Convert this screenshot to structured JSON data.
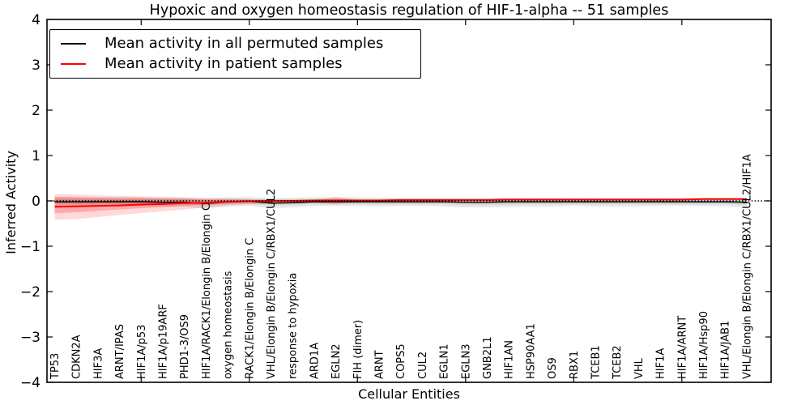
{
  "figure": {
    "title": "Hypoxic and oxygen homeostasis regulation of HIF-1-alpha -- 51 samples",
    "xlabel": "Cellular Entities",
    "ylabel": "Inferred Activity"
  },
  "legend": {
    "position": "upper left",
    "entries": [
      {
        "label": "Mean activity in all permuted samples",
        "color": "#000000"
      },
      {
        "label": "Mean activity in patient samples",
        "color": "#ff0000"
      }
    ]
  },
  "chart_data": {
    "type": "line",
    "title": "Hypoxic and oxygen homeostasis regulation of HIF-1-alpha -- 51 samples",
    "xlabel": "Cellular Entities",
    "ylabel": "Inferred Activity",
    "ylim": [
      -4,
      4
    ],
    "yticks": [
      4,
      3,
      2,
      1,
      0,
      -1,
      -2,
      -3,
      -4
    ],
    "xtick_indices": [
      4,
      9,
      14,
      19,
      24,
      29
    ],
    "grid": false,
    "legend_position": "upper left",
    "zero_line": {
      "y": 0,
      "style": "dotted",
      "color": "#000000"
    },
    "categories": [
      "TP53",
      "CDKN2A",
      "HIF3A",
      "ARNT/IPAS",
      "HIF1A/p53",
      "HIF1A/p19ARF",
      "PHD1-3/OS9",
      "HIF1A/RACK1/Elongin B/Elongin C",
      "oxygen homeostasis",
      "RACK1/Elongin B/Elongin C",
      "VHL/Elongin B/Elongin C/RBX1/CUL2",
      "response to hypoxia",
      "ARD1A",
      "EGLN2",
      "FIH (dimer)",
      "ARNT",
      "COPS5",
      "CUL2",
      "EGLN1",
      "EGLN3",
      "GNB2L1",
      "HIF1AN",
      "HSP90AA1",
      "OS9",
      "RBX1",
      "TCEB1",
      "TCEB2",
      "VHL",
      "HIF1A",
      "HIF1A/ARNT",
      "HIF1A/Hsp90",
      "HIF1A/JAB1",
      "VHL/Elongin B/Elongin C/RBX1/CUL2/HIF1A"
    ],
    "series": [
      {
        "name": "Mean activity in all permuted samples",
        "color": "#000000",
        "line_width": 1.4,
        "values": [
          -0.02,
          -0.02,
          -0.02,
          -0.02,
          -0.02,
          -0.03,
          -0.03,
          -0.06,
          -0.02,
          -0.01,
          -0.05,
          -0.04,
          -0.02,
          -0.02,
          -0.02,
          -0.02,
          -0.02,
          -0.02,
          -0.02,
          -0.03,
          -0.03,
          -0.02,
          -0.02,
          -0.02,
          -0.02,
          -0.02,
          -0.02,
          -0.02,
          -0.02,
          -0.02,
          -0.02,
          -0.02,
          -0.03
        ],
        "band_outer": {
          "color": "#78787830",
          "upper": [
            0.08,
            0.08,
            0.08,
            0.08,
            0.08,
            0.07,
            0.07,
            0.06,
            0.08,
            0.08,
            0.06,
            0.07,
            0.08,
            0.08,
            0.08,
            0.07,
            0.07,
            0.07,
            0.07,
            0.07,
            0.07,
            0.07,
            0.07,
            0.07,
            0.07,
            0.07,
            0.07,
            0.07,
            0.07,
            0.07,
            0.07,
            0.07,
            0.07
          ],
          "lower": [
            -0.12,
            -0.12,
            -0.12,
            -0.12,
            -0.12,
            -0.13,
            -0.13,
            -0.17,
            -0.12,
            -0.11,
            -0.16,
            -0.14,
            -0.11,
            -0.11,
            -0.11,
            -0.12,
            -0.11,
            -0.11,
            -0.12,
            -0.14,
            -0.14,
            -0.13,
            -0.12,
            -0.12,
            -0.11,
            -0.12,
            -0.12,
            -0.12,
            -0.11,
            -0.11,
            -0.11,
            -0.12,
            -0.14
          ]
        },
        "band_inner": {
          "color": "#78787836",
          "upper": [
            0.04,
            0.04,
            0.04,
            0.04,
            0.04,
            0.04,
            0.04,
            0.03,
            0.04,
            0.04,
            0.03,
            0.04,
            0.04,
            0.04,
            0.04,
            0.04,
            0.04,
            0.04,
            0.04,
            0.04,
            0.04,
            0.04,
            0.04,
            0.04,
            0.04,
            0.04,
            0.04,
            0.04,
            0.04,
            0.04,
            0.04,
            0.04,
            0.04
          ],
          "lower": [
            -0.07,
            -0.07,
            -0.07,
            -0.07,
            -0.07,
            -0.08,
            -0.08,
            -0.1,
            -0.07,
            -0.07,
            -0.09,
            -0.08,
            -0.07,
            -0.07,
            -0.07,
            -0.07,
            -0.07,
            -0.07,
            -0.07,
            -0.08,
            -0.08,
            -0.08,
            -0.07,
            -0.07,
            -0.07,
            -0.07,
            -0.07,
            -0.07,
            -0.07,
            -0.07,
            -0.07,
            -0.07,
            -0.08
          ]
        }
      },
      {
        "name": "Mean activity in patient samples",
        "color": "#ff0000",
        "line_width": 2,
        "values": [
          -0.13,
          -0.12,
          -0.11,
          -0.1,
          -0.08,
          -0.07,
          -0.05,
          -0.04,
          -0.02,
          -0.01,
          0,
          0,
          0.01,
          0.01,
          0.01,
          0.01,
          0.02,
          0.02,
          0.02,
          0.02,
          0.02,
          0.03,
          0.03,
          0.03,
          0.03,
          0.03,
          0.03,
          0.03,
          0.03,
          0.03,
          0.04,
          0.04,
          0.04
        ],
        "band_outer": {
          "color": "#ff000026",
          "upper": [
            0.15,
            0.14,
            0.12,
            0.11,
            0.1,
            0.09,
            0.08,
            0.06,
            0.05,
            0.04,
            0.03,
            0.02,
            0.03,
            0.09,
            0.03,
            0.03,
            0.03,
            0.03,
            0.03,
            0.03,
            0.03,
            0.04,
            0.04,
            0.04,
            0.04,
            0.04,
            0.04,
            0.04,
            0.04,
            0.04,
            0.05,
            0.05,
            0.05
          ],
          "lower": [
            -0.42,
            -0.4,
            -0.36,
            -0.31,
            -0.27,
            -0.23,
            -0.19,
            -0.14,
            -0.1,
            -0.07,
            -0.05,
            -0.03,
            -0.04,
            -0.08,
            -0.02,
            -0.01,
            0,
            0,
            0,
            0,
            0,
            0.01,
            0.01,
            0.01,
            0.02,
            0.02,
            0.02,
            0.02,
            0.02,
            0.02,
            0.03,
            0.03,
            0.03
          ]
        },
        "band_inner": {
          "color": "#ff000038",
          "upper": [
            0.09,
            0.08,
            0.07,
            0.06,
            0.06,
            0.05,
            0.04,
            0.03,
            0.03,
            0.02,
            0.01,
            0.01,
            0.02,
            0.05,
            0.02,
            0.02,
            0.02,
            0.02,
            0.02,
            0.02,
            0.03,
            0.03,
            0.03,
            0.03,
            0.03,
            0.03,
            0.03,
            0.03,
            0.04,
            0.04,
            0.04,
            0.04,
            0.04
          ],
          "lower": [
            -0.27,
            -0.25,
            -0.22,
            -0.19,
            -0.16,
            -0.14,
            -0.11,
            -0.08,
            -0.06,
            -0.04,
            -0.03,
            -0.02,
            -0.02,
            -0.04,
            -0.01,
            0,
            0,
            0,
            0.01,
            0.01,
            0.01,
            0.01,
            0.02,
            0.02,
            0.02,
            0.02,
            0.02,
            0.02,
            0.02,
            0.02,
            0.03,
            0.03,
            0.03
          ]
        }
      }
    ]
  }
}
